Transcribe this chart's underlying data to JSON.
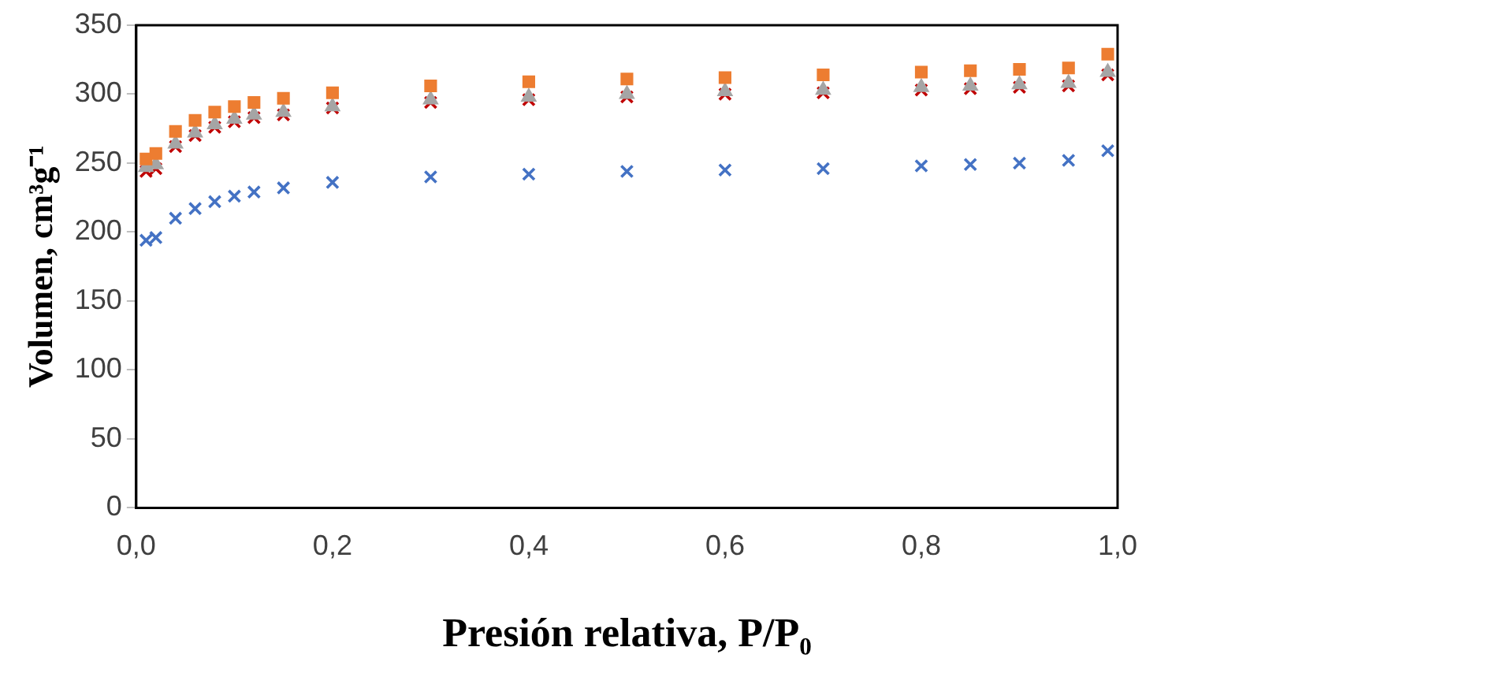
{
  "chart_data": {
    "type": "scatter",
    "xlabel": "Presión relativa, P/P₀",
    "ylabel": "Volumen, cm³g⁻¹",
    "xlim": [
      0,
      1
    ],
    "xticks": [
      {
        "value": 0,
        "label": "0,0"
      },
      {
        "value": 0.2,
        "label": "0,2"
      },
      {
        "value": 0.4,
        "label": "0,4"
      },
      {
        "value": 0.6,
        "label": "0,6"
      },
      {
        "value": 0.8,
        "label": "0,8"
      },
      {
        "value": 1,
        "label": "1,0"
      }
    ],
    "ylim": [
      0,
      350
    ],
    "yticks": [
      0,
      50,
      100,
      150,
      200,
      250,
      300,
      350
    ],
    "grid": false,
    "legend": false,
    "x": [
      0.01,
      0.02,
      0.04,
      0.06,
      0.08,
      0.1,
      0.12,
      0.15,
      0.2,
      0.3,
      0.4,
      0.5,
      0.6,
      0.7,
      0.8,
      0.85,
      0.9,
      0.95,
      0.99
    ],
    "series": [
      {
        "color": "#ed7d31",
        "marker": "square",
        "values": [
          253,
          257,
          273,
          281,
          287,
          291,
          294,
          297,
          301,
          306,
          309,
          311,
          312,
          314,
          316,
          317,
          318,
          319,
          329
        ]
      },
      {
        "color": "#a5a5a5",
        "marker": "triangle",
        "values": [
          247,
          249,
          264,
          272,
          278,
          282,
          285,
          287,
          291,
          296,
          298,
          300,
          302,
          303,
          305,
          306,
          307,
          308,
          316
        ]
      },
      {
        "color": "#c00000",
        "marker": "cross",
        "values": [
          244,
          246,
          262,
          270,
          276,
          280,
          283,
          285,
          290,
          294,
          296,
          298,
          300,
          301,
          303,
          304,
          305,
          306,
          314
        ]
      },
      {
        "color": "#4472c4",
        "marker": "cross",
        "values": [
          194,
          196,
          210,
          217,
          222,
          226,
          229,
          232,
          236,
          240,
          242,
          244,
          245,
          246,
          248,
          249,
          250,
          252,
          259
        ]
      }
    ]
  }
}
